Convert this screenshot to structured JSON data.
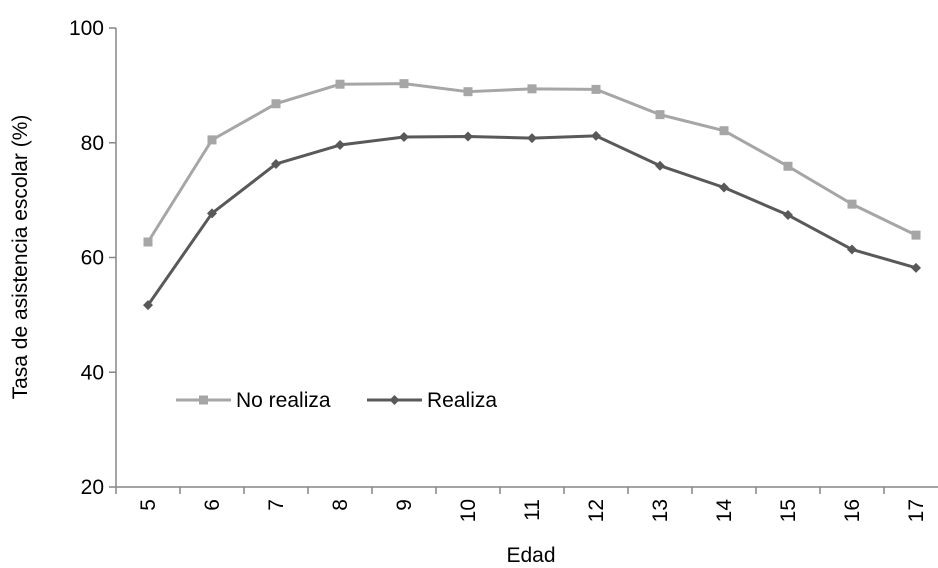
{
  "chart_data": {
    "type": "line",
    "xlabel": "Edad",
    "ylabel": "Tasa de asistencia escolar (%)",
    "x": [
      5,
      6,
      7,
      8,
      9,
      10,
      11,
      12,
      13,
      14,
      15,
      16,
      17
    ],
    "ylim": [
      20,
      100
    ],
    "yticks": [
      20,
      40,
      60,
      80,
      100
    ],
    "grid": false,
    "legend_position": "inside-left",
    "series": [
      {
        "name": "No realiza",
        "color": "#a6a6a6",
        "marker": "square",
        "values": [
          62.7,
          80.5,
          86.8,
          90.2,
          90.3,
          88.9,
          89.4,
          89.3,
          84.9,
          82.1,
          75.9,
          69.3,
          63.9
        ]
      },
      {
        "name": "Realiza",
        "color": "#595959",
        "marker": "diamond",
        "values": [
          51.7,
          67.7,
          76.3,
          79.6,
          81.0,
          81.1,
          80.8,
          81.2,
          76.0,
          72.2,
          67.4,
          61.4,
          58.2
        ]
      }
    ]
  }
}
